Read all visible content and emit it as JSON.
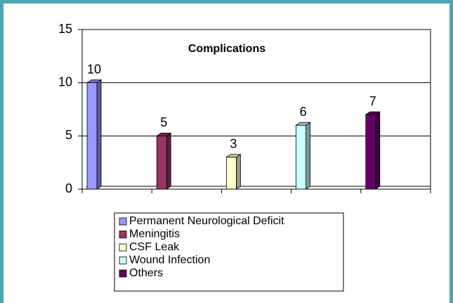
{
  "chart_data": {
    "type": "bar",
    "title": "Complications",
    "series": [
      {
        "name": "Permanent Neurological Deficit",
        "color": "#9999ff",
        "values": [
          10
        ]
      },
      {
        "name": "Meningitis",
        "color": "#993366",
        "values": [
          5
        ]
      },
      {
        "name": "CSF Leak",
        "color": "#ffffcc",
        "values": [
          3
        ]
      },
      {
        "name": "Wound Infection",
        "color": "#ccffff",
        "values": [
          6
        ]
      },
      {
        "name": "Others",
        "color": "#660066",
        "values": [
          7
        ]
      }
    ],
    "ylim": [
      0,
      15
    ],
    "yticks": [
      0,
      5,
      10,
      15
    ],
    "grid": true
  }
}
